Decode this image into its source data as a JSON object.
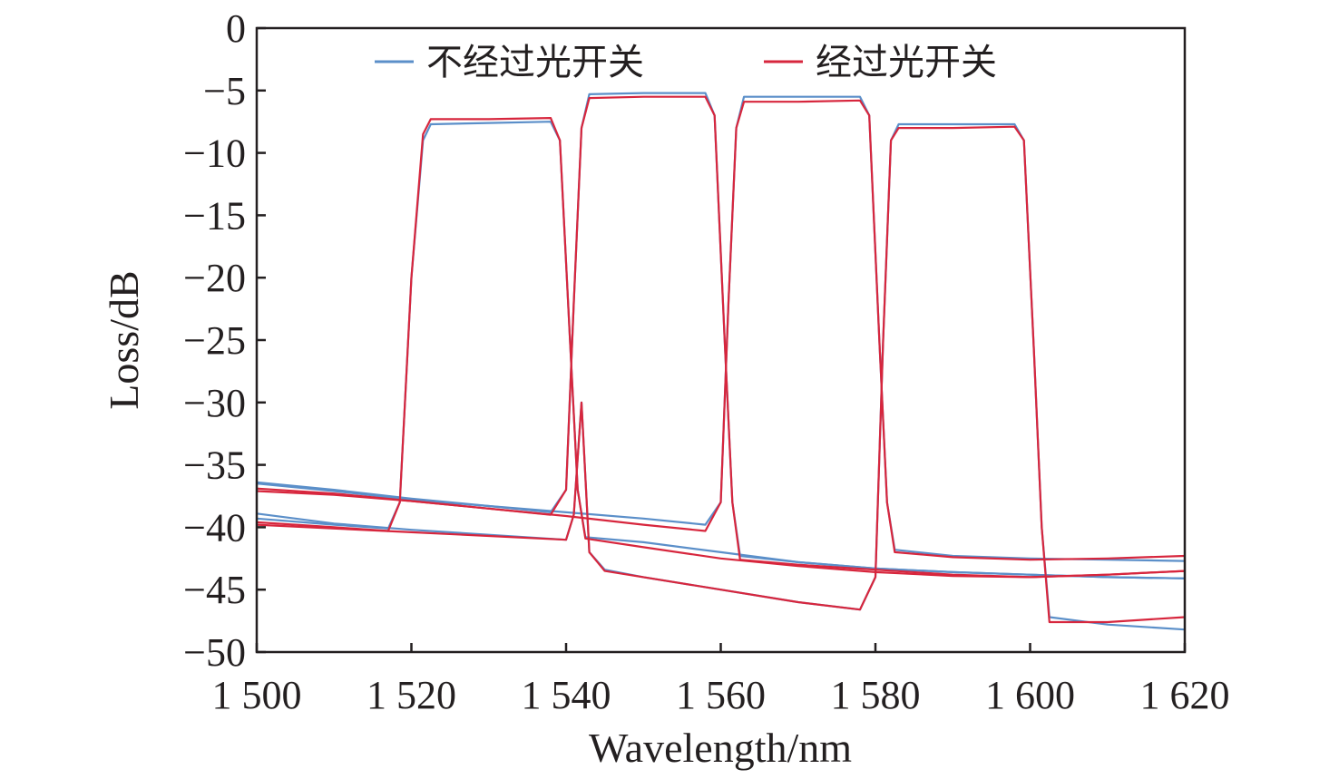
{
  "chart_data": {
    "type": "line",
    "xlabel": "Wavelength/nm",
    "ylabel": "Loss/dB",
    "xlim": [
      1500,
      1620
    ],
    "ylim": [
      -50,
      0
    ],
    "x_ticks": [
      1500,
      1520,
      1540,
      1560,
      1580,
      1600,
      1620
    ],
    "x_tick_labels": [
      "1 500",
      "1 520",
      "1 540",
      "1 560",
      "1 580",
      "1 600",
      "1 620"
    ],
    "y_ticks": [
      0,
      -5,
      -10,
      -15,
      -20,
      -25,
      -30,
      -35,
      -40,
      -45,
      -50
    ],
    "y_tick_labels": [
      "0",
      "−5",
      "−10",
      "−15",
      "−20",
      "−25",
      "−30",
      "−35",
      "−40",
      "−45",
      "−50"
    ],
    "legend_position": "top",
    "legend": [
      {
        "label": "不经过光开关",
        "color": "#5b8fc9"
      },
      {
        "label": "经过光开关",
        "color": "#d7263d"
      }
    ],
    "series": [
      {
        "name": "不经过光开关",
        "color": "#5b8fc9",
        "channels": [
          {
            "x": [
              1500,
              1510,
              1517,
              1518.5,
              1520,
              1521.5,
              1522.5,
              1530,
              1538,
              1539.2,
              1540.5,
              1541.5,
              1542.5,
              1550,
              1560,
              1570,
              1580,
              1590,
              1600,
              1610,
              1620
            ],
            "y": [
              -39.3,
              -39.8,
              -40.1,
              -38,
              -20,
              -9,
              -7.7,
              -7.6,
              -7.5,
              -9,
              -25,
              -37,
              -40.8,
              -41.2,
              -42,
              -42.8,
              -43.3,
              -43.6,
              -43.8,
              -44,
              -44.1
            ]
          },
          {
            "x": [
              1500,
              1510,
              1520,
              1530,
              1538,
              1540,
              1541,
              1542,
              1543,
              1550,
              1558,
              1559.2,
              1560.5,
              1561.5,
              1562.5,
              1570,
              1580,
              1590,
              1600,
              1610,
              1620
            ],
            "y": [
              -36.4,
              -37,
              -37.7,
              -38.3,
              -38.8,
              -37,
              -22,
              -8,
              -5.3,
              -5.2,
              -5.2,
              -7,
              -25,
              -38,
              -42.3,
              -42.8,
              -43.3,
              -43.6,
              -43.8,
              -44,
              -44.1
            ]
          },
          {
            "x": [
              1500,
              1510,
              1520,
              1530,
              1540,
              1550,
              1558,
              1560,
              1561,
              1562,
              1563,
              1570,
              1578,
              1579.2,
              1580.5,
              1581.5,
              1582.5,
              1590,
              1600,
              1610,
              1620
            ],
            "y": [
              -36.5,
              -37.1,
              -37.8,
              -38.3,
              -38.8,
              -39.3,
              -39.8,
              -38,
              -22,
              -8,
              -5.5,
              -5.5,
              -5.5,
              -7,
              -25,
              -38,
              -41.8,
              -42.3,
              -42.5,
              -42.6,
              -42.7
            ]
          },
          {
            "x": [
              1500,
              1510,
              1520,
              1530,
              1540,
              1541,
              1542,
              1543,
              1545,
              1550,
              1560,
              1570,
              1578,
              1580,
              1581,
              1582,
              1583,
              1590,
              1598,
              1599.2,
              1600.5,
              1601.5,
              1602.5,
              1610,
              1620
            ],
            "y": [
              -38.9,
              -39.7,
              -40.2,
              -40.6,
              -41,
              -39,
              -30,
              -42,
              -43.4,
              -44,
              -45,
              -46,
              -46.6,
              -44,
              -25,
              -9,
              -7.7,
              -7.7,
              -7.7,
              -9,
              -26,
              -40,
              -47.2,
              -47.8,
              -48.2
            ]
          }
        ]
      },
      {
        "name": "经过光开关",
        "color": "#d7263d",
        "channels": [
          {
            "x": [
              1500,
              1510,
              1517,
              1518.5,
              1520,
              1521.5,
              1522.5,
              1530,
              1538,
              1539.2,
              1540.5,
              1541.5,
              1542.5,
              1550,
              1560,
              1570,
              1580,
              1590,
              1600,
              1610,
              1620
            ],
            "y": [
              -39.6,
              -40,
              -40.3,
              -38,
              -20,
              -8.5,
              -7.3,
              -7.3,
              -7.2,
              -9,
              -25,
              -37,
              -40.9,
              -41.6,
              -42.5,
              -43.1,
              -43.6,
              -43.9,
              -44,
              -43.8,
              -43.5
            ]
          },
          {
            "x": [
              1500,
              1510,
              1520,
              1530,
              1538,
              1540,
              1541,
              1542,
              1543,
              1550,
              1558,
              1559.2,
              1560.5,
              1561.5,
              1562.5,
              1570,
              1580,
              1590,
              1600,
              1610,
              1620
            ],
            "y": [
              -36.9,
              -37.3,
              -37.9,
              -38.5,
              -39,
              -37,
              -22,
              -8,
              -5.6,
              -5.5,
              -5.5,
              -7,
              -25,
              -38,
              -42.6,
              -43,
              -43.4,
              -43.8,
              -44,
              -43.8,
              -43.5
            ]
          },
          {
            "x": [
              1500,
              1510,
              1520,
              1530,
              1540,
              1550,
              1558,
              1560,
              1561,
              1562,
              1563,
              1570,
              1578,
              1579.2,
              1580.5,
              1581.5,
              1582.5,
              1590,
              1600,
              1610,
              1620
            ],
            "y": [
              -37.1,
              -37.4,
              -37.9,
              -38.5,
              -39.1,
              -39.8,
              -40.3,
              -38,
              -22,
              -8,
              -5.9,
              -5.9,
              -5.8,
              -7,
              -25,
              -38,
              -42,
              -42.4,
              -42.6,
              -42.5,
              -42.3
            ]
          },
          {
            "x": [
              1500,
              1510,
              1520,
              1530,
              1540,
              1541,
              1542,
              1543,
              1545,
              1550,
              1560,
              1570,
              1578,
              1580,
              1581,
              1582,
              1583,
              1590,
              1598,
              1599.2,
              1600.5,
              1601.5,
              1602.5,
              1610,
              1620
            ],
            "y": [
              -39.8,
              -40.1,
              -40.4,
              -40.7,
              -41,
              -39,
              -30,
              -42,
              -43.5,
              -44,
              -45,
              -46,
              -46.6,
              -44,
              -25,
              -9,
              -8,
              -8,
              -7.9,
              -9,
              -26,
              -40,
              -47.6,
              -47.6,
              -47.2
            ]
          }
        ]
      }
    ]
  }
}
